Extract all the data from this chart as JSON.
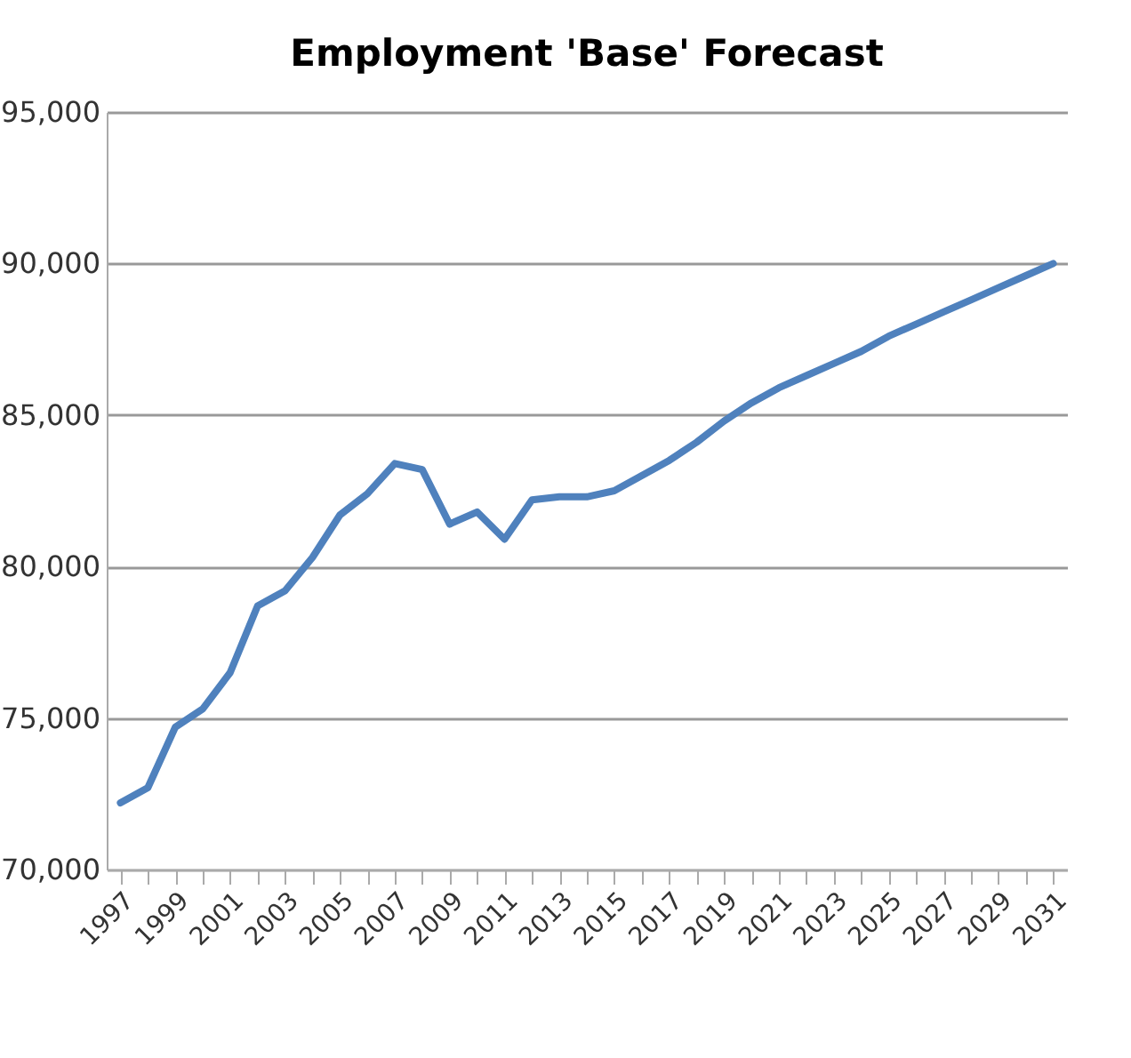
{
  "chart_data": {
    "type": "line",
    "title": "Employment 'Base' Forecast",
    "categories": [
      "1997",
      null,
      "1999",
      null,
      "2001",
      null,
      "2003",
      null,
      "2005",
      null,
      "2007",
      null,
      "2009",
      null,
      "2011",
      null,
      "2013",
      null,
      "2015",
      null,
      "2017",
      null,
      "2019",
      null,
      "2021",
      null,
      "2023",
      null,
      "2025",
      null,
      "2027",
      null,
      "2029",
      null,
      "2031"
    ],
    "series": [
      {
        "color": "#4f81bd",
        "values": [
          72200,
          72700,
          74700,
          75300,
          76500,
          78700,
          79200,
          80300,
          81700,
          82400,
          83400,
          83200,
          81400,
          81800,
          80900,
          82200,
          82300,
          82300,
          82500,
          83000,
          83500,
          84100,
          84800,
          85400,
          85900,
          86300,
          86700,
          87100,
          87600,
          88000,
          88400,
          88800,
          89200,
          89600,
          90000
        ]
      }
    ],
    "ylim": [
      70000,
      95000
    ],
    "yticks": [
      {
        "value": 70000,
        "label": "70,000"
      },
      {
        "value": 75000,
        "label": "75,000"
      },
      {
        "value": 80000,
        "label": "80,000"
      },
      {
        "value": 85000,
        "label": "85,000"
      },
      {
        "value": 90000,
        "label": "90,000"
      },
      {
        "value": 95000,
        "label": "95,000"
      }
    ],
    "grid": "y",
    "marker": "none",
    "line_style": "solid"
  }
}
